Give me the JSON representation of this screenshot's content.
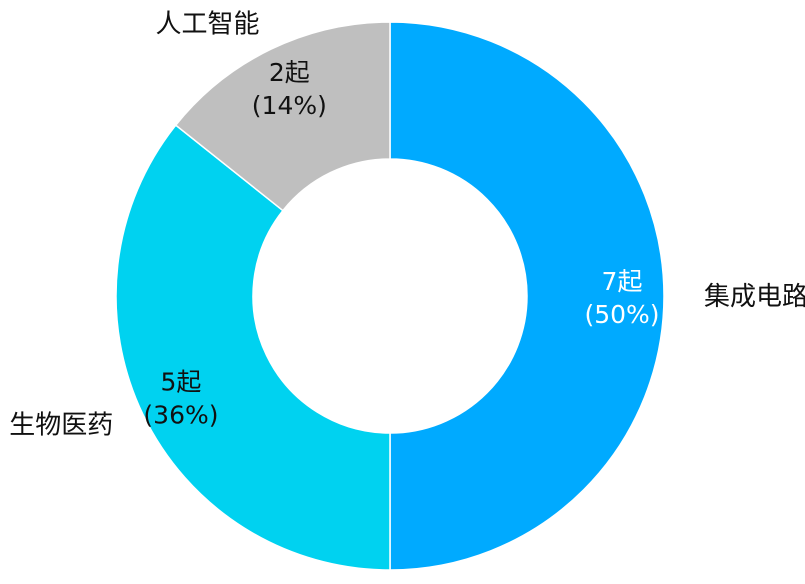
{
  "chart_data": {
    "type": "pie",
    "variant": "donut",
    "title": "",
    "slices": [
      {
        "name": "集成电路",
        "value": 7,
        "count_label": "7起",
        "percent_label": "(50%)",
        "color": "#00AAFF",
        "label_color": "#ffffff"
      },
      {
        "name": "生物医药",
        "value": 5,
        "count_label": "5起",
        "percent_label": "(36%)",
        "color": "#00D2F0",
        "label_color": "#111111"
      },
      {
        "name": "人工智能",
        "value": 2,
        "count_label": "2起",
        "percent_label": "(14%)",
        "color": "#BFBFBF",
        "label_color": "#111111"
      }
    ],
    "start": "12 o'clock",
    "direction": "clockwise",
    "legend": "none"
  }
}
